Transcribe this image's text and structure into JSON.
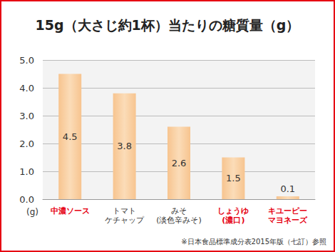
{
  "chart_data": {
    "type": "bar",
    "title": "15g（大さじ約1杯）当たりの糖質量（g）",
    "ylabel": "(g)",
    "categories": [
      "中濃ソース",
      "トマト\nケチャップ",
      "みそ\n(淡色辛みそ)",
      "しょうゆ\n(濃口)",
      "キユーピー\nマヨネーズ"
    ],
    "values": [
      4.5,
      3.8,
      2.6,
      1.5,
      0.1
    ],
    "color": "#f7c48f",
    "ylim": [
      0,
      5
    ],
    "yticks": [
      {
        "value": 0,
        "label": "0.0"
      },
      {
        "value": 1,
        "label": "1.0"
      },
      {
        "value": 2,
        "label": "2.0"
      },
      {
        "value": 3,
        "label": "3.0"
      },
      {
        "value": 4,
        "label": "4.0"
      },
      {
        "value": 5,
        "label": "5.0"
      }
    ],
    "grid": true,
    "data_labels": true,
    "annotations": [
      "※日本食品標準成分表2015年版（七訂）参照"
    ]
  }
}
